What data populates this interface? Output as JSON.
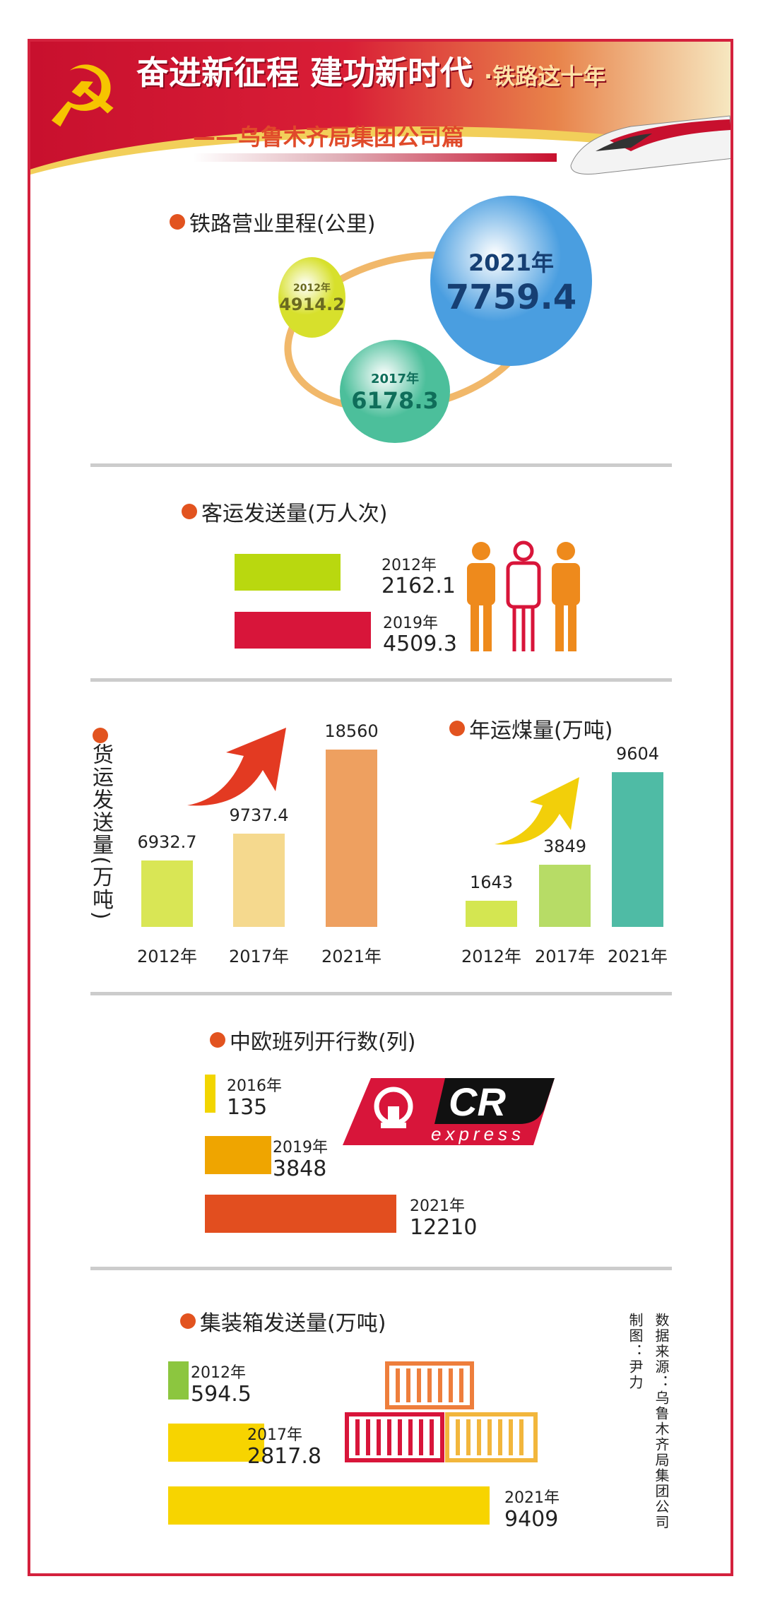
{
  "header": {
    "title_main": "奋进新征程 建功新时代",
    "title_sep": "·",
    "title_sub": "铁路这十年",
    "subtitle": "——乌鲁木齐局集团公司篇",
    "emblem_icon": "hammer-sickle-icon"
  },
  "colors": {
    "frame": "#d4213d",
    "dot": "#e2531f"
  },
  "chart_data": [
    {
      "type": "bubble",
      "title": "铁路营业里程(公里)",
      "categories": [
        "2012年",
        "2017年",
        "2021年"
      ],
      "values": [
        4914.2,
        6178.3,
        7759.4
      ],
      "colors": [
        "#d7e02c",
        "#4cbf9b",
        "#4a9ee0"
      ]
    },
    {
      "type": "bar",
      "orientation": "horizontal",
      "title": "客运发送量(万人次)",
      "categories": [
        "2012年",
        "2019年"
      ],
      "values": [
        2162.1,
        4509.3
      ],
      "value_labels": [
        "2162.1",
        "4509.3"
      ],
      "colors": [
        "#b9d80f",
        "#d8153a"
      ]
    },
    {
      "type": "bar",
      "orientation": "vertical",
      "title": "货运发送量(万吨)",
      "categories": [
        "2012年",
        "2017年",
        "2021年"
      ],
      "values": [
        6932.7,
        9737.4,
        18560
      ],
      "value_labels": [
        "6932.7",
        "9737.4",
        "18560"
      ],
      "colors": [
        "#d9e655",
        "#f5d98e",
        "#eea060"
      ]
    },
    {
      "type": "bar",
      "orientation": "vertical",
      "title": "年运煤量(万吨)",
      "categories": [
        "2012年",
        "2017年",
        "2021年"
      ],
      "values": [
        1643,
        3849,
        9604
      ],
      "value_labels": [
        "1643",
        "3849",
        "9604"
      ],
      "colors": [
        "#d4e651",
        "#b7dc66",
        "#4fbba5"
      ]
    },
    {
      "type": "bar",
      "orientation": "horizontal",
      "title": "中欧班列开行数(列)",
      "categories": [
        "2016年",
        "2019年",
        "2021年"
      ],
      "values": [
        135,
        3848,
        12210
      ],
      "value_labels": [
        "135",
        "3848",
        "12210"
      ],
      "colors": [
        "#f2d500",
        "#efa500",
        "#e24e1f"
      ]
    },
    {
      "type": "bar",
      "orientation": "horizontal",
      "title": "集装箱发送量(万吨)",
      "categories": [
        "2012年",
        "2017年",
        "2021年"
      ],
      "values": [
        594.5,
        2817.8,
        9409
      ],
      "value_labels": [
        "594.5",
        "2817.8",
        "9409"
      ],
      "colors": [
        "#8cc63f",
        "#f7d400",
        "#f7d400"
      ]
    }
  ],
  "logo": {
    "text_main": "CR",
    "text_sub": "express"
  },
  "credits": {
    "source": "数据来源：乌鲁木齐局集团公司",
    "author": "制图：尹力"
  }
}
